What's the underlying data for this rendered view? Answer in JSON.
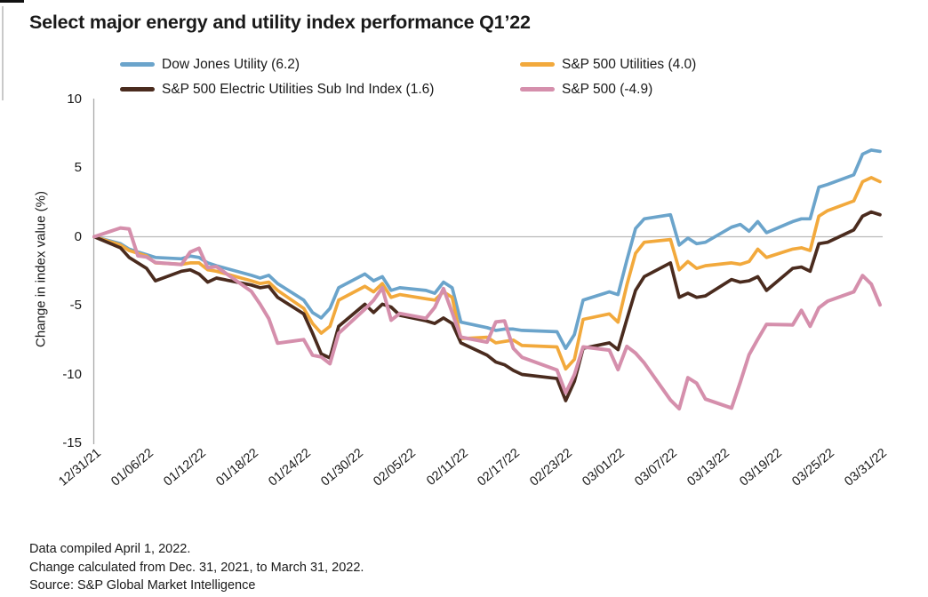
{
  "title": "Select major energy and utility index performance Q1’22",
  "legend": [
    {
      "label": "Dow Jones Utility (6.2)",
      "color": "#6ba4cb"
    },
    {
      "label": "S&P 500 Utilities (4.0)",
      "color": "#f2a93c"
    },
    {
      "label": "S&P 500 Electric Utilities Sub Ind Index (1.6)",
      "color": "#4a2b1e"
    },
    {
      "label": "S&P 500 (-4.9)",
      "color": "#d58fac"
    }
  ],
  "y_axis": {
    "label": "Change in index value (%)",
    "tick_labels": [
      "10",
      "5",
      "0",
      "-5",
      "-10",
      "-15"
    ],
    "tick_values": [
      10,
      5,
      0,
      -5,
      -10,
      -15
    ]
  },
  "x_axis": {
    "tick_labels": [
      "12/31/21",
      "01/06/22",
      "01/12/22",
      "01/18/22",
      "01/24/22",
      "01/30/22",
      "02/05/22",
      "02/11/22",
      "02/17/22",
      "02/23/22",
      "03/01/22",
      "03/07/22",
      "03/13/22",
      "03/19/22",
      "03/25/22",
      "03/31/22"
    ],
    "tick_days": [
      0,
      6,
      12,
      18,
      24,
      30,
      36,
      42,
      48,
      54,
      60,
      66,
      72,
      78,
      84,
      90
    ]
  },
  "footer": [
    "Data compiled April 1, 2022.",
    "Change calculated from Dec. 31, 2021, to March 31, 2022.",
    "Source: S&P Global Market Intelligence"
  ],
  "chart_data": {
    "type": "line",
    "title": "Select major energy and utility index performance Q1’22",
    "ylabel": "Change in index value (%)",
    "ylim": [
      -15,
      10
    ],
    "xlim_days": [
      0,
      90
    ],
    "grid": "zero-line-only",
    "legend_position": "top",
    "x_dates": [
      "12/31/21",
      "01/03/22",
      "01/04/22",
      "01/05/22",
      "01/06/22",
      "01/07/22",
      "01/10/22",
      "01/11/22",
      "01/12/22",
      "01/13/22",
      "01/14/22",
      "01/18/22",
      "01/19/22",
      "01/20/22",
      "01/21/22",
      "01/24/22",
      "01/25/22",
      "01/26/22",
      "01/27/22",
      "01/28/22",
      "01/31/22",
      "02/01/22",
      "02/02/22",
      "02/03/22",
      "02/04/22",
      "02/07/22",
      "02/08/22",
      "02/09/22",
      "02/10/22",
      "02/11/22",
      "02/14/22",
      "02/15/22",
      "02/16/22",
      "02/17/22",
      "02/18/22",
      "02/22/22",
      "02/23/22",
      "02/24/22",
      "02/25/22",
      "02/28/22",
      "03/01/22",
      "03/02/22",
      "03/03/22",
      "03/04/22",
      "03/07/22",
      "03/08/22",
      "03/09/22",
      "03/10/22",
      "03/11/22",
      "03/14/22",
      "03/15/22",
      "03/16/22",
      "03/17/22",
      "03/18/22",
      "03/21/22",
      "03/22/22",
      "03/23/22",
      "03/24/22",
      "03/25/22",
      "03/28/22",
      "03/29/22",
      "03/30/22",
      "03/31/22"
    ],
    "x_days": [
      0,
      3,
      4,
      5,
      6,
      7,
      10,
      11,
      12,
      13,
      14,
      18,
      19,
      20,
      21,
      24,
      25,
      26,
      27,
      28,
      31,
      32,
      33,
      34,
      35,
      38,
      39,
      40,
      41,
      42,
      45,
      46,
      47,
      48,
      49,
      53,
      54,
      55,
      56,
      59,
      60,
      61,
      62,
      63,
      66,
      67,
      68,
      69,
      70,
      73,
      74,
      75,
      76,
      77,
      80,
      81,
      82,
      83,
      84,
      87,
      88,
      89,
      90
    ],
    "series": [
      {
        "name": "Dow Jones Utility",
        "final_return": 6.2,
        "color": "#6ba4cb",
        "values": [
          0,
          -0.5,
          -0.9,
          -1.1,
          -1.3,
          -1.5,
          -1.6,
          -1.4,
          -1.5,
          -1.9,
          -2.1,
          -2.8,
          -3.0,
          -2.8,
          -3.4,
          -4.6,
          -5.5,
          -5.9,
          -5.2,
          -3.7,
          -2.7,
          -3.2,
          -2.9,
          -3.9,
          -3.7,
          -3.9,
          -4.1,
          -3.3,
          -3.7,
          -6.2,
          -6.6,
          -6.8,
          -6.7,
          -6.7,
          -6.8,
          -6.9,
          -8.1,
          -7.1,
          -4.6,
          -4.0,
          -4.2,
          -1.7,
          0.6,
          1.3,
          1.6,
          -0.6,
          -0.1,
          -0.5,
          -0.4,
          0.7,
          0.9,
          0.4,
          1.1,
          0.3,
          1.1,
          1.3,
          1.3,
          3.6,
          3.8,
          4.5,
          6.0,
          6.3,
          6.2
        ]
      },
      {
        "name": "S&P 500 Utilities",
        "final_return": 4.0,
        "color": "#f2a93c",
        "values": [
          0,
          -0.6,
          -1.0,
          -1.2,
          -1.4,
          -1.9,
          -2.0,
          -1.9,
          -1.9,
          -2.4,
          -2.5,
          -3.2,
          -3.4,
          -3.3,
          -3.9,
          -5.2,
          -6.3,
          -7.0,
          -6.5,
          -4.6,
          -3.6,
          -4.0,
          -3.4,
          -4.4,
          -4.2,
          -4.5,
          -4.6,
          -4.0,
          -4.4,
          -7.4,
          -7.3,
          -7.7,
          -7.6,
          -7.5,
          -7.9,
          -8.0,
          -9.6,
          -8.9,
          -6.0,
          -5.6,
          -6.2,
          -3.5,
          -1.2,
          -0.4,
          -0.2,
          -2.4,
          -1.8,
          -2.3,
          -2.1,
          -1.9,
          -2.0,
          -1.8,
          -0.9,
          -1.5,
          -0.9,
          -0.8,
          -1.0,
          1.5,
          1.9,
          2.6,
          4.0,
          4.3,
          4.0
        ]
      },
      {
        "name": "S&P 500 Electric Utilities Sub Ind Index",
        "final_return": 1.6,
        "color": "#4a2b1e",
        "values": [
          0,
          -0.8,
          -1.5,
          -1.9,
          -2.3,
          -3.2,
          -2.5,
          -2.4,
          -2.7,
          -3.3,
          -3.0,
          -3.5,
          -3.7,
          -3.6,
          -4.4,
          -5.6,
          -7.0,
          -8.5,
          -8.8,
          -6.5,
          -4.9,
          -5.5,
          -4.9,
          -5.1,
          -5.7,
          -6.1,
          -6.3,
          -5.9,
          -6.3,
          -7.7,
          -8.6,
          -9.1,
          -9.3,
          -9.7,
          -10.0,
          -10.3,
          -11.9,
          -10.5,
          -8.1,
          -7.7,
          -8.2,
          -6.0,
          -3.9,
          -2.9,
          -1.9,
          -4.4,
          -4.1,
          -4.4,
          -4.3,
          -3.1,
          -3.3,
          -3.2,
          -2.9,
          -3.9,
          -2.3,
          -2.2,
          -2.5,
          -0.5,
          -0.4,
          0.5,
          1.5,
          1.8,
          1.6
        ]
      },
      {
        "name": "S&P 500",
        "final_return": -4.9,
        "color": "#d58fac",
        "values": [
          0,
          0.64,
          0.57,
          -1.38,
          -1.47,
          -1.87,
          -2.01,
          -1.11,
          -0.84,
          -2.25,
          -2.17,
          -3.97,
          -4.9,
          -5.95,
          -7.73,
          -7.47,
          -8.6,
          -8.73,
          -9.22,
          -7.01,
          -5.26,
          -4.61,
          -3.71,
          -6.06,
          -5.57,
          -5.92,
          -5.13,
          -3.76,
          -5.5,
          -7.29,
          -7.65,
          -6.19,
          -6.11,
          -8.1,
          -8.76,
          -9.68,
          -11.34,
          -10.02,
          -8.0,
          -8.23,
          -9.65,
          -7.96,
          -8.45,
          -9.17,
          -11.86,
          -12.49,
          -10.24,
          -10.63,
          -11.79,
          -12.44,
          -10.57,
          -8.57,
          -7.44,
          -6.36,
          -6.4,
          -5.34,
          -6.5,
          -5.16,
          -4.68,
          -4.0,
          -2.82,
          -3.44,
          -4.95
        ]
      }
    ],
    "axis_color": "#a9a9a9",
    "zero_line_color": "#b9b9b9"
  }
}
